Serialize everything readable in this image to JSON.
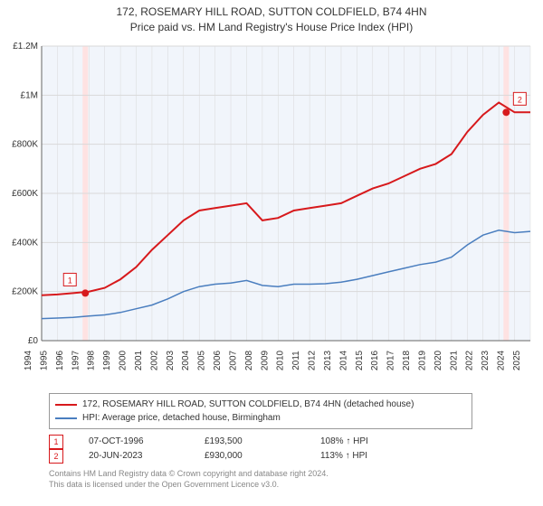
{
  "title_line1": "172, ROSEMARY HILL ROAD, SUTTON COLDFIELD, B74 4HN",
  "title_line2": "Price paid vs. HM Land Registry's House Price Index (HPI)",
  "chart": {
    "type": "line",
    "background_color": "#ffffff",
    "plot_background": "#ffffff",
    "shade_color": "#f1f5fb",
    "marker_band_color": "#fee2e2",
    "axis_color": "#666666",
    "grid_color": "#d9d9d9",
    "label_fontsize": 10,
    "x_start": 1994,
    "x_end": 2025,
    "x_tick_step": 1,
    "ylim": [
      0,
      1200000
    ],
    "ytick_step": 200000,
    "ytick_labels": [
      "£0",
      "£200K",
      "£400K",
      "£600K",
      "£800K",
      "£1M",
      "£1.2M"
    ],
    "series": [
      {
        "key": "price_paid",
        "label": "172, ROSEMARY HILL ROAD, SUTTON COLDFIELD, B74 4HN (detached house)",
        "color": "#d7191c",
        "line_width": 2,
        "x": [
          1994,
          1995,
          1996,
          1997,
          1998,
          1999,
          2000,
          2001,
          2002,
          2003,
          2004,
          2005,
          2006,
          2007,
          2008,
          2009,
          2010,
          2011,
          2012,
          2013,
          2014,
          2015,
          2016,
          2017,
          2018,
          2019,
          2020,
          2021,
          2022,
          2023,
          2024,
          2025
        ],
        "y": [
          185000,
          188000,
          193500,
          200000,
          215000,
          250000,
          300000,
          370000,
          430000,
          490000,
          530000,
          540000,
          550000,
          560000,
          490000,
          500000,
          530000,
          540000,
          550000,
          560000,
          590000,
          620000,
          640000,
          670000,
          700000,
          720000,
          760000,
          850000,
          920000,
          970000,
          930000,
          930000
        ]
      },
      {
        "key": "hpi",
        "label": "HPI: Average price, detached house, Birmingham",
        "color": "#4a7ebf",
        "line_width": 1.5,
        "x": [
          1994,
          1995,
          1996,
          1997,
          1998,
          1999,
          2000,
          2001,
          2002,
          2003,
          2004,
          2005,
          2006,
          2007,
          2008,
          2009,
          2010,
          2011,
          2012,
          2013,
          2014,
          2015,
          2016,
          2017,
          2018,
          2019,
          2020,
          2021,
          2022,
          2023,
          2024,
          2025
        ],
        "y": [
          90000,
          92000,
          95000,
          100000,
          105000,
          115000,
          130000,
          145000,
          170000,
          200000,
          220000,
          230000,
          235000,
          245000,
          225000,
          220000,
          230000,
          230000,
          232000,
          238000,
          250000,
          265000,
          280000,
          295000,
          310000,
          320000,
          340000,
          390000,
          430000,
          450000,
          440000,
          445000
        ]
      }
    ],
    "markers": [
      {
        "n": "1",
        "x": 1996.77,
        "y": 193500,
        "color": "#d7191c"
      },
      {
        "n": "2",
        "x": 2023.47,
        "y": 930000,
        "color": "#d7191c"
      }
    ]
  },
  "legend": {
    "border_color": "#999999",
    "rows": [
      {
        "color": "#d7191c",
        "label": "172, ROSEMARY HILL ROAD, SUTTON COLDFIELD, B74 4HN (detached house)"
      },
      {
        "color": "#4a7ebf",
        "label": "HPI: Average price, detached house, Birmingham"
      }
    ]
  },
  "marker_table": {
    "rows": [
      {
        "n": "1",
        "date": "07-OCT-1996",
        "price": "£193,500",
        "delta": "108% ↑ HPI",
        "color": "#d7191c"
      },
      {
        "n": "2",
        "date": "20-JUN-2023",
        "price": "£930,000",
        "delta": "113% ↑ HPI",
        "color": "#d7191c"
      }
    ]
  },
  "footnote_line1": "Contains HM Land Registry data © Crown copyright and database right 2024.",
  "footnote_line2": "This data is licensed under the Open Government Licence v3.0."
}
